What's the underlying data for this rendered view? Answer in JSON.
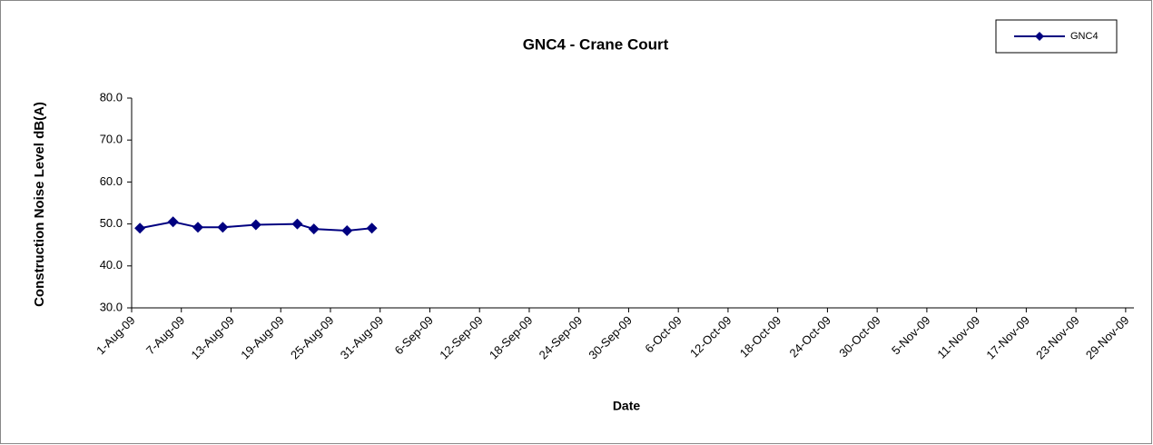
{
  "chart_data": {
    "type": "line",
    "title": "GNC4 - Crane Court",
    "xlabel": "Date",
    "ylabel": "Construction Noise Level  dB(A)",
    "x": [
      "2-Aug-09",
      "6-Aug-09",
      "9-Aug-09",
      "12-Aug-09",
      "16-Aug-09",
      "21-Aug-09",
      "23-Aug-09",
      "27-Aug-09",
      "30-Aug-09"
    ],
    "series": [
      {
        "name": "GNC4",
        "color": "#000080",
        "values": [
          49.0,
          50.5,
          49.2,
          49.2,
          49.8,
          50.0,
          48.8,
          48.4,
          49.0
        ]
      }
    ],
    "xlim": [
      "1-Aug-09",
      "30-Nov-09"
    ],
    "xticks": [
      "1-Aug-09",
      "7-Aug-09",
      "13-Aug-09",
      "19-Aug-09",
      "25-Aug-09",
      "31-Aug-09",
      "6-Sep-09",
      "12-Sep-09",
      "18-Sep-09",
      "24-Sep-09",
      "30-Sep-09",
      "6-Oct-09",
      "12-Oct-09",
      "18-Oct-09",
      "24-Oct-09",
      "30-Oct-09",
      "5-Nov-09",
      "11-Nov-09",
      "17-Nov-09",
      "23-Nov-09",
      "29-Nov-09"
    ],
    "ylim": [
      30,
      80
    ],
    "yticks": [
      {
        "value": 30,
        "label": "30.0"
      },
      {
        "value": 40,
        "label": "40.0"
      },
      {
        "value": 50,
        "label": "50.0"
      },
      {
        "value": 60,
        "label": "60.0"
      },
      {
        "value": 70,
        "label": "70.0"
      },
      {
        "value": 80,
        "label": "80.0"
      }
    ],
    "legend": "top-right"
  }
}
